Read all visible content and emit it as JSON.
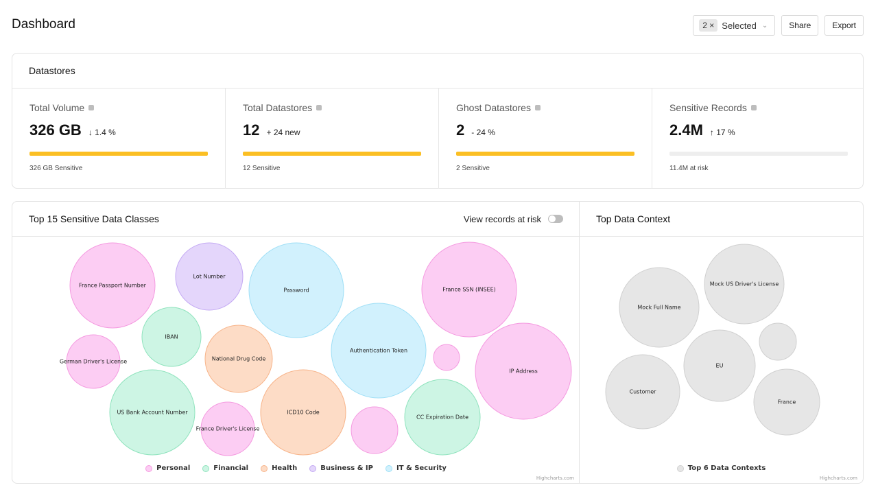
{
  "header": {
    "title": "Dashboard",
    "selector": {
      "count_chip": "2 ×",
      "label": "Selected",
      "chevron": "⌄"
    },
    "share_label": "Share",
    "export_label": "Export"
  },
  "datastores": {
    "title": "Datastores",
    "stats": [
      {
        "label": "Total Volume",
        "value": "326 GB",
        "delta": "↓  1.4 %",
        "progress": 1.0,
        "foot": "326 GB Sensitive"
      },
      {
        "label": "Total Datastores",
        "value": "12",
        "delta": "+ 24 new",
        "progress": 1.0,
        "foot": "12 Sensitive"
      },
      {
        "label": "Ghost Datastores",
        "value": "2",
        "delta": "- 24 %",
        "progress": 1.0,
        "foot": "2 Sensitive"
      },
      {
        "label": "Sensitive Records",
        "value": "2.4M",
        "delta": "↑  17 %",
        "progress": 0.0,
        "foot": "11.4M at risk"
      }
    ]
  },
  "classes_panel": {
    "title": "Top 15 Sensitive Data Classes",
    "toggle_label": "View records at risk",
    "toggle_on": false,
    "credits": "Highcharts.com"
  },
  "context_panel": {
    "title": "Top Data Context",
    "credits": "Highcharts.com"
  },
  "colors": {
    "accent_bar": "#fbbf24",
    "Personal": {
      "fill": "#fccdf3",
      "stroke": "#f49ae0"
    },
    "Financial": {
      "fill": "#cdf5e4",
      "stroke": "#8fe3bd"
    },
    "Health": {
      "fill": "#fddcc6",
      "stroke": "#f7b48a"
    },
    "Business & IP": {
      "fill": "#e4d6fb",
      "stroke": "#c3a9f3"
    },
    "IT & Security": {
      "fill": "#d1f1fd",
      "stroke": "#9fdff6"
    },
    "Context": {
      "fill": "#e6e6e6",
      "stroke": "#d0d0d0"
    }
  },
  "chart_data": [
    {
      "type": "packedbubble",
      "title": "Top 15 Sensitive Data Classes",
      "legend": [
        "Personal",
        "Financial",
        "Health",
        "Business & IP",
        "IT & Security"
      ],
      "legend_placement": "bottom-center",
      "points": [
        {
          "name": "France Passport Number",
          "category": "Personal",
          "size": 62
        },
        {
          "name": "Lot Number",
          "category": "Business & IP",
          "size": 49
        },
        {
          "name": "Password",
          "category": "IT & Security",
          "size": 69
        },
        {
          "name": "France SSN (INSEE)",
          "category": "Personal",
          "size": 69
        },
        {
          "name": "IBAN",
          "category": "Financial",
          "size": 43
        },
        {
          "name": "German Driver's License",
          "category": "Personal",
          "size": 39
        },
        {
          "name": "National Drug Code",
          "category": "Health",
          "size": 49
        },
        {
          "name": "Authentication Token",
          "category": "IT & Security",
          "size": 69
        },
        {
          "name": "",
          "category": "Personal",
          "size": 19
        },
        {
          "name": "IP Address",
          "category": "Personal",
          "size": 70
        },
        {
          "name": "US Bank Account Number",
          "category": "Financial",
          "size": 62
        },
        {
          "name": "France Driver's License",
          "category": "Personal",
          "size": 39
        },
        {
          "name": "ICD10 Code",
          "category": "Health",
          "size": 62
        },
        {
          "name": "",
          "category": "Personal",
          "size": 34
        },
        {
          "name": "CC Expiration Date",
          "category": "Financial",
          "size": 55
        }
      ]
    },
    {
      "type": "packedbubble",
      "title": "Top Data Context",
      "legend": [
        "Top 6 Data Contexts"
      ],
      "legend_placement": "bottom-center",
      "points": [
        {
          "name": "Mock Full Name",
          "size": 58
        },
        {
          "name": "Mock US Driver's License",
          "size": 58
        },
        {
          "name": "EU",
          "size": 52
        },
        {
          "name": "",
          "size": 27
        },
        {
          "name": "Customer",
          "size": 54
        },
        {
          "name": "France",
          "size": 48
        }
      ]
    }
  ]
}
